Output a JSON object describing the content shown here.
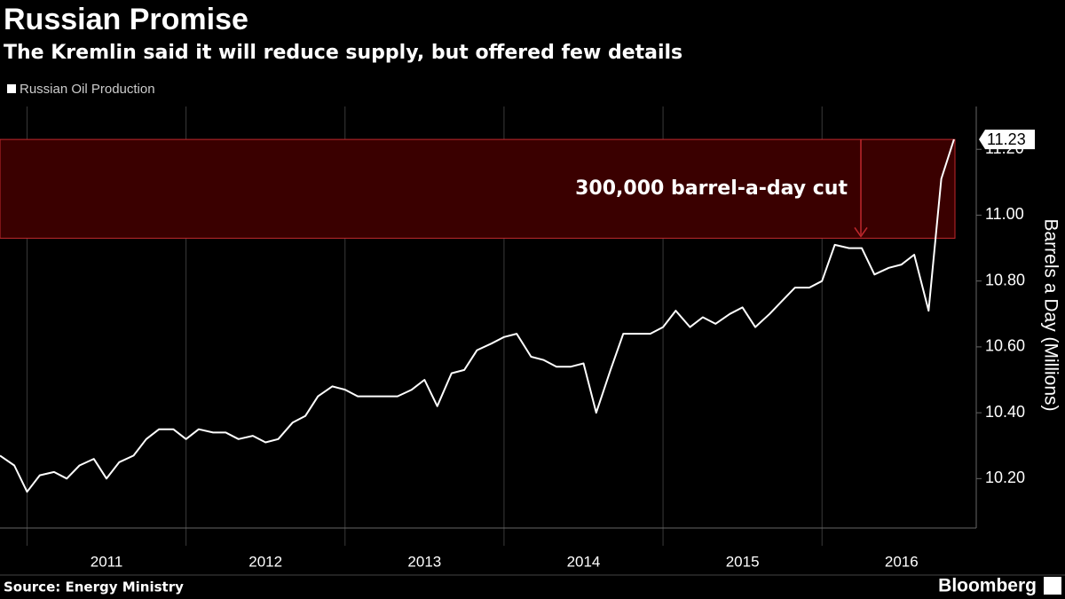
{
  "chart_data": {
    "type": "line",
    "title": "Russian Promise",
    "subtitle": "The Kremlin said it will reduce supply, but offered few details",
    "source": "Source: Energy Ministry",
    "brand": "Bloomberg",
    "y_axis_label": "Barrels a Day (Millions)",
    "annotation": "300,000 barrel-a-day cut",
    "highlight": {
      "from": 10.93,
      "to": 11.23,
      "color": "#3a0000",
      "edge": "#c0282d"
    },
    "xlim": [
      2010.83,
      2016.97
    ],
    "xgrid": [
      2011,
      2012,
      2013,
      2014,
      2015,
      2016
    ],
    "xticks": [
      {
        "value": 2011.5,
        "label": "2011"
      },
      {
        "value": 2012.5,
        "label": "2012"
      },
      {
        "value": 2013.5,
        "label": "2013"
      },
      {
        "value": 2014.5,
        "label": "2014"
      },
      {
        "value": 2015.5,
        "label": "2015"
      },
      {
        "value": 2016.5,
        "label": "2016"
      }
    ],
    "ylim": [
      10.05,
      11.33
    ],
    "yticks": [
      {
        "value": 10.2,
        "label": "10.20"
      },
      {
        "value": 10.4,
        "label": "10.40"
      },
      {
        "value": 10.6,
        "label": "10.60"
      },
      {
        "value": 10.8,
        "label": "10.80"
      },
      {
        "value": 11.0,
        "label": "11.00"
      },
      {
        "value": 11.2,
        "label": "11.20"
      }
    ],
    "x": [
      2010.83,
      2010.92,
      2011.0,
      2011.08,
      2011.17,
      2011.25,
      2011.33,
      2011.42,
      2011.5,
      2011.58,
      2011.67,
      2011.75,
      2011.83,
      2011.92,
      2012.0,
      2012.08,
      2012.17,
      2012.25,
      2012.33,
      2012.42,
      2012.5,
      2012.58,
      2012.67,
      2012.75,
      2012.83,
      2012.92,
      2013.0,
      2013.08,
      2013.17,
      2013.25,
      2013.33,
      2013.42,
      2013.5,
      2013.58,
      2013.67,
      2013.75,
      2013.83,
      2013.92,
      2014.0,
      2014.08,
      2014.17,
      2014.25,
      2014.33,
      2014.42,
      2014.5,
      2014.58,
      2014.67,
      2014.75,
      2014.83,
      2014.92,
      2015.0,
      2015.08,
      2015.17,
      2015.25,
      2015.33,
      2015.42,
      2015.5,
      2015.58,
      2015.67,
      2015.75,
      2015.83,
      2015.92,
      2016.0,
      2016.08,
      2016.17,
      2016.25,
      2016.33,
      2016.42,
      2016.5,
      2016.58,
      2016.67,
      2016.75,
      2016.83
    ],
    "series": [
      {
        "name": "Russian Oil Production",
        "color": "#ffffff",
        "values": [
          10.27,
          10.24,
          10.16,
          10.21,
          10.22,
          10.2,
          10.24,
          10.26,
          10.2,
          10.25,
          10.27,
          10.32,
          10.35,
          10.35,
          10.32,
          10.35,
          10.34,
          10.34,
          10.32,
          10.33,
          10.31,
          10.32,
          10.37,
          10.39,
          10.45,
          10.48,
          10.47,
          10.45,
          10.45,
          10.45,
          10.45,
          10.47,
          10.5,
          10.42,
          10.52,
          10.53,
          10.59,
          10.61,
          10.63,
          10.64,
          10.57,
          10.56,
          10.54,
          10.54,
          10.55,
          10.4,
          10.53,
          10.64,
          10.64,
          10.64,
          10.66,
          10.71,
          10.66,
          10.69,
          10.67,
          10.7,
          10.72,
          10.66,
          10.7,
          10.74,
          10.78,
          10.78,
          10.8,
          10.91,
          10.9,
          10.9,
          10.82,
          10.84,
          10.85,
          10.88,
          10.71,
          11.11,
          11.23
        ]
      }
    ]
  }
}
